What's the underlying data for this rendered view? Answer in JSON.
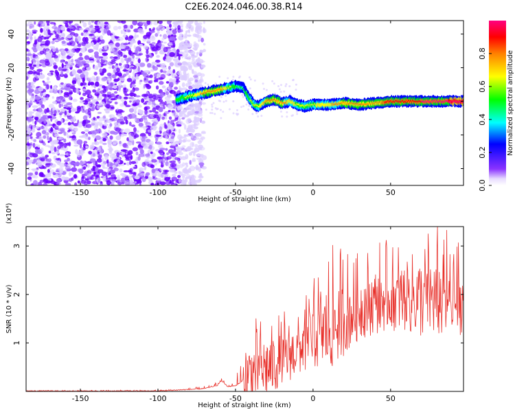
{
  "chart_data": [
    {
      "type": "heatmap",
      "title": "C2E6.2024.046.00.38.R14",
      "xlabel": "Height of straight line (km)",
      "ylabel": "Frequency (Hz)",
      "xlim": [
        -185,
        97
      ],
      "ylim": [
        -50,
        48
      ],
      "xticks": [
        -150,
        -100,
        -50,
        0,
        50
      ],
      "yticks": [
        -40,
        -20,
        0,
        20,
        40
      ],
      "colorbar": {
        "label": "Normalized spectral amplitude",
        "range": [
          0,
          1
        ],
        "ticks": [
          "0.0",
          "0.2",
          "0.4",
          "0.6",
          "0.8"
        ],
        "colormap": [
          "#ffffff",
          "#d9c8ff",
          "#6a00ff",
          "#0000ff",
          "#00ffff",
          "#00ff00",
          "#ffff00",
          "#ff8000",
          "#ff0000",
          "#ff0080"
        ]
      },
      "noise_region_x": [
        -185,
        -78
      ],
      "ridge": {
        "x": [
          -88,
          -80,
          -70,
          -60,
          -55,
          -50,
          -45,
          -42,
          -38,
          -35,
          -30,
          -25,
          -20,
          -15,
          -10,
          -5,
          0,
          10,
          20,
          30,
          40,
          50,
          60,
          70,
          80,
          90,
          97
        ],
        "y": [
          1,
          3,
          5,
          7,
          8,
          9,
          8,
          3,
          -2,
          -3,
          0,
          1,
          -1,
          0,
          -2,
          -3,
          -2,
          -2,
          -1,
          -2,
          -1,
          0,
          0,
          0,
          0,
          0,
          0
        ],
        "peak_amplitude": [
          0.45,
          0.55,
          0.7,
          0.75,
          0.6,
          0.45,
          0.4,
          0.5,
          0.55,
          0.6,
          0.7,
          0.75,
          0.7,
          0.65,
          0.6,
          0.6,
          0.6,
          0.65,
          0.7,
          0.7,
          0.72,
          0.85,
          0.9,
          0.9,
          0.92,
          0.95,
          0.95
        ]
      }
    },
    {
      "type": "line",
      "title": "",
      "xlabel": "Height of straight line (km)",
      "ylabel": "SNR (10 * v/v)",
      "scale_label": "(x10⁴)",
      "xlim": [
        -185,
        97
      ],
      "ylim": [
        0,
        3.4
      ],
      "xticks": [
        -150,
        -100,
        -50,
        0,
        50
      ],
      "yticks": [
        1,
        2,
        3
      ],
      "color": "#e8302a",
      "series": [
        {
          "envelope_x": [
            -185,
            -100,
            -80,
            -70,
            -62,
            -59,
            -55,
            -50,
            -46,
            -44,
            -40,
            -35,
            -30,
            -20,
            -10,
            0,
            10,
            20,
            30,
            40,
            50,
            55,
            60,
            70,
            80,
            90,
            97
          ],
          "baseline": [
            0.01,
            0.01,
            0.04,
            0.06,
            0.12,
            0.22,
            0.1,
            0.12,
            0.2,
            0.3,
            0.45,
            0.5,
            0.55,
            0.7,
            0.9,
            1.2,
            1.4,
            1.6,
            1.8,
            1.9,
            2.0,
            2.0,
            2.0,
            2.0,
            2.0,
            1.9,
            1.9
          ],
          "peaks": [
            0.01,
            0.02,
            0.06,
            0.1,
            0.18,
            0.3,
            0.15,
            0.2,
            1.0,
            1.6,
            1.5,
            1.5,
            1.7,
            1.6,
            1.8,
            2.3,
            3.0,
            2.9,
            2.9,
            3.0,
            3.1,
            3.2,
            3.2,
            3.4,
            3.35,
            3.3,
            2.9
          ]
        }
      ]
    }
  ]
}
